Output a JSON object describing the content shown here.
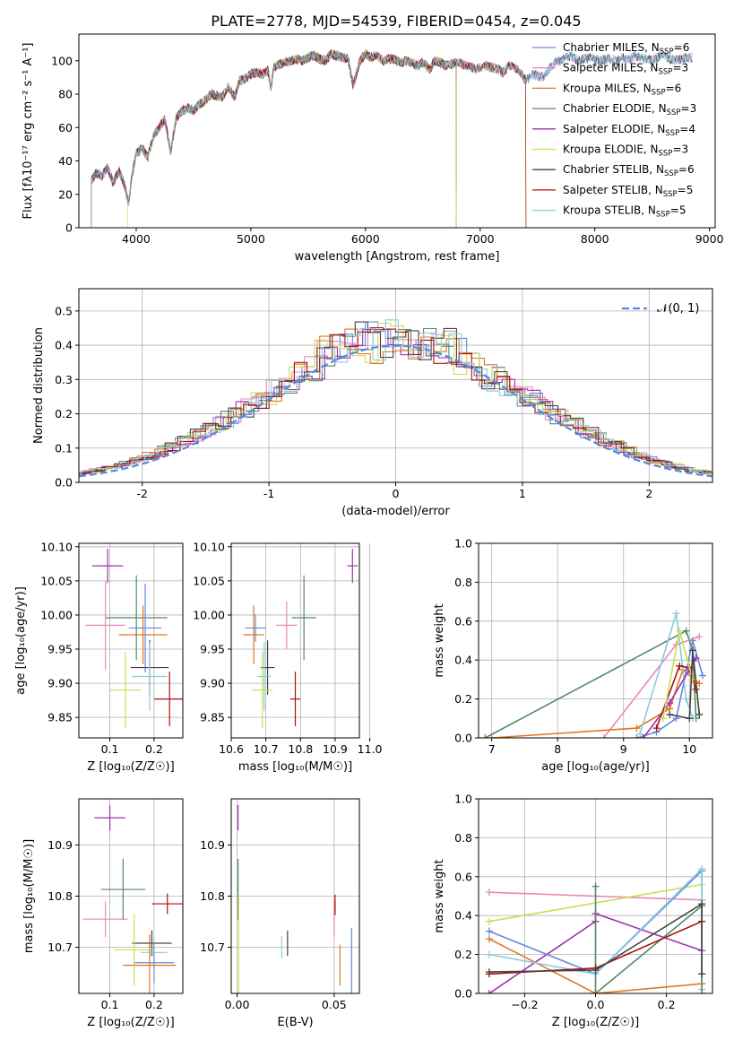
{
  "suptitle": "PLATE=2778, MJD=54539, FIBERID=0454, z=0.045",
  "colors": {
    "chabrier_miles": "#6688dd",
    "salpeter_miles": "#e988b8",
    "kroupa_miles": "#dd7722",
    "chabrier_elodie": "#558866",
    "salpeter_elodie": "#a030b0",
    "kroupa_elodie": "#ccdd55",
    "chabrier_stelib": "#444444",
    "salpeter_stelib": "#aa1111",
    "kroupa_stelib": "#88ccdd",
    "normal": "#5588dd",
    "grid": "#b0b0b0"
  },
  "chart_data": [
    {
      "id": "spectrum",
      "type": "line",
      "xlabel": "wavelength [Angstrom, rest frame]",
      "ylabel": "Flux [fλ10⁻¹⁷ erg cm⁻² s⁻¹ A⁻¹]",
      "xlim": [
        3500,
        9050
      ],
      "ylim": [
        0,
        116
      ],
      "xticks": [
        4000,
        5000,
        6000,
        7000,
        8000,
        9000
      ],
      "yticks": [
        0,
        20,
        40,
        60,
        80,
        100
      ],
      "grid": false,
      "legend_position": "upper-right",
      "spectrum_x": [
        3610,
        3650,
        3700,
        3750,
        3800,
        3850,
        3900,
        3933,
        3960,
        4000,
        4050,
        4101,
        4150,
        4200,
        4250,
        4300,
        4350,
        4400,
        4450,
        4500,
        4550,
        4600,
        4650,
        4700,
        4750,
        4800,
        4861,
        4900,
        4950,
        5000,
        5050,
        5100,
        5150,
        5175,
        5200,
        5250,
        5300,
        5350,
        5400,
        5450,
        5500,
        5550,
        5600,
        5650,
        5700,
        5750,
        5800,
        5850,
        5893,
        5950,
        6000,
        6050,
        6100,
        6150,
        6200,
        6250,
        6300,
        6350,
        6400,
        6450,
        6500,
        6563,
        6600,
        6650,
        6700,
        6750,
        6800,
        6850,
        6900,
        6950,
        7000,
        7050,
        7100,
        7150,
        7200,
        7250,
        7300,
        7350,
        7400,
        7450,
        7500,
        7550,
        7600,
        7650,
        7700,
        7750,
        7800,
        7850,
        7900,
        7950,
        8000,
        8050,
        8100,
        8150,
        8200,
        8250,
        8300,
        8350,
        8400,
        8450,
        8500,
        8550,
        8600,
        8650,
        8700,
        8750,
        8800
      ],
      "spectrum_y": [
        28,
        33,
        31,
        36,
        27,
        34,
        25,
        14,
        30,
        44,
        48,
        42,
        55,
        60,
        65,
        45,
        66,
        70,
        72,
        70,
        74,
        76,
        80,
        79,
        78,
        84,
        78,
        88,
        89,
        92,
        93,
        92,
        94,
        84,
        96,
        98,
        99,
        100,
        101,
        100,
        102,
        103,
        101,
        100,
        104,
        103,
        102,
        101,
        85,
        100,
        104,
        102,
        103,
        100,
        101,
        101,
        99,
        100,
        99,
        97,
        99,
        95,
        100,
        99,
        97,
        98,
        99,
        98,
        97,
        95,
        96,
        97,
        96,
        95,
        93,
        97,
        96,
        93,
        88,
        92,
        91,
        90,
        95,
        99,
        100,
        102,
        103,
        100,
        101,
        102,
        101,
        100,
        101,
        101,
        100,
        102,
        101,
        103,
        102,
        101,
        100,
        102,
        104,
        101,
        100,
        101,
        102
      ],
      "curves": [
        {
          "key": "chabrier_miles",
          "start": 3610,
          "end": 8850
        },
        {
          "key": "salpeter_miles",
          "start": 3610,
          "end": 8850
        },
        {
          "key": "kroupa_miles",
          "start": 3610,
          "end": 7400
        },
        {
          "key": "chabrier_elodie",
          "start": 3610,
          "end": 6790
        },
        {
          "key": "salpeter_elodie",
          "start": 3610,
          "end": 6790
        },
        {
          "key": "kroupa_elodie",
          "start": 3925,
          "end": 6790
        },
        {
          "key": "chabrier_stelib",
          "start": 3610,
          "end": 8850
        },
        {
          "key": "salpeter_stelib",
          "start": 3610,
          "end": 7400
        },
        {
          "key": "kroupa_stelib",
          "start": 3610,
          "end": 8850
        }
      ],
      "legend": [
        {
          "key": "chabrier_miles",
          "name": "Chabrier MILES, N",
          "nssp": "6"
        },
        {
          "key": "salpeter_miles",
          "name": "Salpeter MILES, N",
          "nssp": "3"
        },
        {
          "key": "kroupa_miles",
          "name": "Kroupa MILES, N",
          "nssp": "6"
        },
        {
          "key": "chabrier_elodie",
          "name": "Chabrier ELODIE, N",
          "nssp": "3"
        },
        {
          "key": "salpeter_elodie",
          "name": "Salpeter ELODIE, N",
          "nssp": "4"
        },
        {
          "key": "kroupa_elodie",
          "name": "Kroupa ELODIE, N",
          "nssp": "3"
        },
        {
          "key": "chabrier_stelib",
          "name": "Chabrier STELIB, N",
          "nssp": "6"
        },
        {
          "key": "salpeter_stelib",
          "name": "Salpeter STELIB, N",
          "nssp": "5"
        },
        {
          "key": "kroupa_stelib",
          "name": "Kroupa STELIB, N",
          "nssp": "5"
        }
      ],
      "legend_subscript": "SSP"
    },
    {
      "id": "residuals",
      "type": "histogram",
      "xlabel": "(data-model)/error",
      "ylabel": "Normed distribution",
      "xlim": [
        -2.5,
        2.5
      ],
      "ylim": [
        0,
        0.565
      ],
      "xticks": [
        -2,
        -1,
        0,
        1,
        2
      ],
      "yticks": [
        0.0,
        0.1,
        0.2,
        0.3,
        0.4,
        0.5
      ],
      "grid": true,
      "legend_label": "𝒩(0, 1)",
      "bin_width": 0.1
    },
    {
      "id": "age_vs_Z",
      "type": "errorbar",
      "xlabel": "Z [log₁₀(Z/Z☉)]",
      "ylabel": "age  [log₁₀(age/yr)]",
      "xlim": [
        0.03,
        0.265
      ],
      "ylim": [
        9.82,
        10.105
      ],
      "xticks": [
        0.1,
        0.2
      ],
      "yticks": [
        9.85,
        9.9,
        9.95,
        10.0,
        10.05,
        10.1
      ],
      "points": [
        {
          "key": "salpeter_elodie",
          "x": 0.095,
          "y": 10.072,
          "xerr": 0.035,
          "yerr": 0.025
        },
        {
          "key": "chabrier_elodie",
          "x": 0.16,
          "y": 9.996,
          "xerr": 0.07,
          "yerr": 0.062
        },
        {
          "key": "kroupa_miles",
          "x": 0.175,
          "y": 9.971,
          "xerr": 0.055,
          "yerr": 0.043
        },
        {
          "key": "chabrier_miles",
          "x": 0.18,
          "y": 9.981,
          "xerr": 0.037,
          "yerr": 0.065
        },
        {
          "key": "salpeter_miles",
          "x": 0.09,
          "y": 9.985,
          "xerr": 0.045,
          "yerr": 0.065
        },
        {
          "key": "chabrier_stelib",
          "x": 0.19,
          "y": 9.923,
          "xerr": 0.043,
          "yerr": 0.04
        },
        {
          "key": "kroupa_stelib",
          "x": 0.19,
          "y": 9.91,
          "xerr": 0.04,
          "yerr": 0.05
        },
        {
          "key": "kroupa_elodie",
          "x": 0.135,
          "y": 9.89,
          "xerr": 0.035,
          "yerr": 0.056
        },
        {
          "key": "salpeter_stelib",
          "x": 0.235,
          "y": 9.877,
          "xerr": 0.035,
          "yerr": 0.04
        }
      ]
    },
    {
      "id": "age_vs_mass",
      "type": "errorbar",
      "xlabel": "mass [log₁₀(M/M☉)]",
      "ylabel": "",
      "xlim": [
        10.6,
        10.97
      ],
      "ylim": [
        9.82,
        10.105
      ],
      "xticks": [
        10.6,
        10.7,
        10.8,
        10.9,
        11.0
      ],
      "xticklabels": [
        "10.6",
        "10.7",
        "10.8",
        "10.9",
        "11.0"
      ],
      "yticks": [
        9.85,
        9.9,
        9.95,
        10.0,
        10.05,
        10.1
      ],
      "points": [
        {
          "key": "salpeter_elodie",
          "x": 10.95,
          "y": 10.072,
          "xerr": 0.015,
          "yerr": 0.025
        },
        {
          "key": "chabrier_elodie",
          "x": 10.81,
          "y": 9.996,
          "xerr": 0.035,
          "yerr": 0.062
        },
        {
          "key": "salpeter_miles",
          "x": 10.76,
          "y": 9.985,
          "xerr": 0.03,
          "yerr": 0.035
        },
        {
          "key": "chabrier_miles",
          "x": 10.67,
          "y": 9.981,
          "xerr": 0.03,
          "yerr": 0.02
        },
        {
          "key": "kroupa_miles",
          "x": 10.665,
          "y": 9.971,
          "xerr": 0.03,
          "yerr": 0.043
        },
        {
          "key": "chabrier_stelib",
          "x": 10.705,
          "y": 9.923,
          "xerr": 0.02,
          "yerr": 0.04
        },
        {
          "key": "kroupa_stelib",
          "x": 10.695,
          "y": 9.91,
          "xerr": 0.02,
          "yerr": 0.05
        },
        {
          "key": "kroupa_elodie",
          "x": 10.69,
          "y": 9.89,
          "xerr": 0.03,
          "yerr": 0.056
        },
        {
          "key": "salpeter_stelib",
          "x": 10.785,
          "y": 9.877,
          "xerr": 0.015,
          "yerr": 0.04
        }
      ]
    },
    {
      "id": "weight_vs_age",
      "type": "line",
      "xlabel": "age  [log₁₀(age/yr)]",
      "ylabel": "mass weight",
      "xlim": [
        6.8,
        10.35
      ],
      "ylim": [
        0,
        1
      ],
      "xticks": [
        7,
        8,
        9,
        10
      ],
      "yticks": [
        0.0,
        0.2,
        0.4,
        0.6,
        0.8,
        1.0
      ],
      "series": [
        {
          "key": "chabrier_elodie",
          "x": [
            6.9,
            9.95,
            10.05,
            10.1
          ],
          "y": [
            0.0,
            0.55,
            0.45,
            0.1
          ]
        },
        {
          "key": "salpeter_miles",
          "x": [
            8.7,
            9.8,
            10.15
          ],
          "y": [
            0.0,
            0.48,
            0.52
          ]
        },
        {
          "key": "kroupa_miles",
          "x": [
            7.0,
            9.2,
            9.7,
            9.9,
            10.15
          ],
          "y": [
            0.0,
            0.05,
            0.15,
            0.35,
            0.28
          ]
        },
        {
          "key": "chabrier_miles",
          "x": [
            9.2,
            9.5,
            9.8,
            10.05,
            10.2
          ],
          "y": [
            0.0,
            0.03,
            0.1,
            0.5,
            0.32
          ]
        },
        {
          "key": "kroupa_stelib",
          "x": [
            9.25,
            9.8,
            9.95,
            10.05
          ],
          "y": [
            0.02,
            0.64,
            0.2,
            0.1
          ]
        },
        {
          "key": "salpeter_elodie",
          "x": [
            9.3,
            9.7,
            10.0,
            10.1
          ],
          "y": [
            0.0,
            0.18,
            0.35,
            0.41
          ]
        },
        {
          "key": "salpeter_stelib",
          "x": [
            9.5,
            9.85,
            10.0,
            10.1
          ],
          "y": [
            0.05,
            0.37,
            0.36,
            0.25
          ]
        },
        {
          "key": "kroupa_elodie",
          "x": [
            9.6,
            9.85,
            10.05
          ],
          "y": [
            0.1,
            0.55,
            0.3
          ]
        },
        {
          "key": "chabrier_stelib",
          "x": [
            9.7,
            10.0,
            10.05,
            10.15
          ],
          "y": [
            0.12,
            0.1,
            0.45,
            0.12
          ]
        }
      ]
    },
    {
      "id": "mass_vs_Z",
      "type": "errorbar",
      "xlabel": "Z [log₁₀(Z/Z☉)]",
      "ylabel": "mass [log₁₀(M/M☉)]",
      "xlim": [
        0.03,
        0.265
      ],
      "ylim": [
        10.61,
        10.99
      ],
      "xticks": [
        0.1,
        0.2
      ],
      "yticks": [
        10.7,
        10.8,
        10.9
      ],
      "points": [
        {
          "key": "salpeter_elodie",
          "x": 0.1,
          "y": 10.953,
          "xerr": 0.035,
          "yerr": 0.025
        },
        {
          "key": "chabrier_elodie",
          "x": 0.13,
          "y": 10.813,
          "xerr": 0.05,
          "yerr": 0.06
        },
        {
          "key": "salpeter_stelib",
          "x": 0.23,
          "y": 10.785,
          "xerr": 0.035,
          "yerr": 0.02
        },
        {
          "key": "salpeter_miles",
          "x": 0.09,
          "y": 10.755,
          "xerr": 0.05,
          "yerr": 0.035
        },
        {
          "key": "chabrier_stelib",
          "x": 0.195,
          "y": 10.708,
          "xerr": 0.045,
          "yerr": 0.025
        },
        {
          "key": "kroupa_elodie",
          "x": 0.155,
          "y": 10.695,
          "xerr": 0.045,
          "yerr": 0.07
        },
        {
          "key": "kroupa_stelib",
          "x": 0.2,
          "y": 10.69,
          "xerr": 0.03,
          "yerr": 0.03
        },
        {
          "key": "chabrier_miles",
          "x": 0.2,
          "y": 10.67,
          "xerr": 0.045,
          "yerr": 0.04
        },
        {
          "key": "kroupa_miles",
          "x": 0.19,
          "y": 10.665,
          "xerr": 0.06,
          "yerr": 0.06
        }
      ]
    },
    {
      "id": "mass_vs_ebv",
      "type": "errorbar",
      "xlabel": "E(B-V)",
      "ylabel": "",
      "xlim": [
        -0.003,
        0.063
      ],
      "ylim": [
        10.61,
        10.99
      ],
      "xticks": [
        0.0,
        0.05
      ],
      "xticklabels": [
        "0.00",
        "0.05"
      ],
      "yticks": [
        10.7,
        10.8,
        10.9
      ],
      "points": [
        {
          "key": "salpeter_elodie",
          "x": 0.0005,
          "y": 10.953,
          "xerr": 0.0003,
          "yerr": 0.025
        },
        {
          "key": "chabrier_elodie",
          "x": 0.0005,
          "y": 10.813,
          "xerr": 0.0003,
          "yerr": 0.06
        },
        {
          "key": "kroupa_elodie",
          "x": 0.0008,
          "y": 10.695,
          "xerr": 0.0003,
          "yerr": 0.11
        },
        {
          "key": "salpeter_miles",
          "x": 0.05,
          "y": 10.755,
          "xerr": 0.0003,
          "yerr": 0.035
        },
        {
          "key": "salpeter_stelib",
          "x": 0.0505,
          "y": 10.783,
          "xerr": 0.0003,
          "yerr": 0.02
        },
        {
          "key": "kroupa_stelib",
          "x": 0.023,
          "y": 10.7,
          "xerr": 0.0003,
          "yerr": 0.022
        },
        {
          "key": "chabrier_stelib",
          "x": 0.026,
          "y": 10.708,
          "xerr": 0.0003,
          "yerr": 0.025
        },
        {
          "key": "kroupa_miles",
          "x": 0.053,
          "y": 10.665,
          "xerr": 0.0003,
          "yerr": 0.04
        },
        {
          "key": "chabrier_miles",
          "x": 0.059,
          "y": 10.668,
          "xerr": 0.0003,
          "yerr": 0.07
        }
      ]
    },
    {
      "id": "weight_vs_Z",
      "type": "line",
      "xlabel": "Z [log₁₀(Z/Z☉)]",
      "ylabel": "mass weight",
      "xlim": [
        -0.33,
        0.33
      ],
      "ylim": [
        0,
        1
      ],
      "xticks": [
        -0.2,
        0.0,
        0.2
      ],
      "xticklabels": [
        "−0.2",
        "0.0",
        "0.2"
      ],
      "yticks": [
        0.0,
        0.2,
        0.4,
        0.6,
        0.8,
        1.0
      ],
      "series": [
        {
          "key": "salpeter_miles",
          "x": [
            -0.3,
            0.3
          ],
          "y": [
            0.52,
            0.48
          ]
        },
        {
          "key": "kroupa_elodie",
          "x": [
            -0.3,
            0.3
          ],
          "y": [
            0.37,
            0.56
          ]
        },
        {
          "key": "salpeter_elodie",
          "x": [
            -0.3,
            0.0,
            0.0,
            0.3
          ],
          "y": [
            0.0,
            0.37,
            0.41,
            0.22
          ]
        },
        {
          "key": "chabrier_miles",
          "x": [
            -0.3,
            0.0,
            0.3,
            0.3
          ],
          "y": [
            0.32,
            0.1,
            0.63,
            0.05
          ]
        },
        {
          "key": "kroupa_miles",
          "x": [
            -0.3,
            0.0,
            0.3
          ],
          "y": [
            0.28,
            0.0,
            0.05
          ]
        },
        {
          "key": "kroupa_stelib",
          "x": [
            -0.3,
            0.0,
            0.3,
            0.3
          ],
          "y": [
            0.2,
            0.1,
            0.64,
            0.02
          ]
        },
        {
          "key": "chabrier_elodie",
          "x": [
            0.0,
            0.0,
            0.3,
            0.3
          ],
          "y": [
            0.55,
            0.0,
            0.45,
            0.0
          ]
        },
        {
          "key": "salpeter_stelib",
          "x": [
            -0.3,
            0.0,
            0.3
          ],
          "y": [
            0.1,
            0.13,
            0.37
          ]
        },
        {
          "key": "chabrier_stelib",
          "x": [
            -0.3,
            0.0,
            0.3,
            0.3
          ],
          "y": [
            0.11,
            0.12,
            0.46,
            0.1
          ]
        }
      ]
    }
  ]
}
